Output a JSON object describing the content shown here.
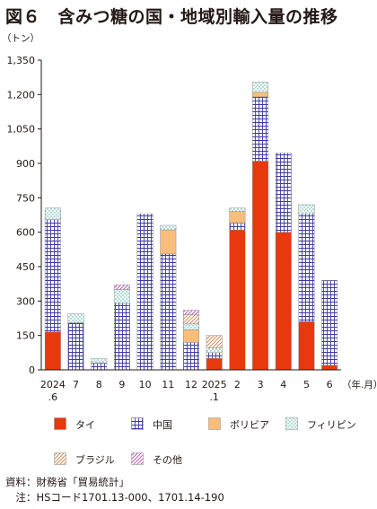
{
  "figure_title": "図６　含みつ糖の国・地域別輸入量の推移",
  "y_unit_label": "（トン）",
  "x_unit_label": "（年.月）",
  "chart_data": {
    "type": "bar",
    "stacked": true,
    "categories": [
      "2024 .6",
      "7",
      "8",
      "9",
      "10",
      "11",
      "12",
      "2025 .1",
      "2",
      "3",
      "4",
      "5",
      "6"
    ],
    "y_tick_labels": [
      "0",
      "150",
      "300",
      "450",
      "600",
      "750",
      "900",
      "1,050",
      "1,200",
      "1,350"
    ],
    "ylim": [
      0,
      1350
    ],
    "grid": false,
    "series": [
      {
        "name": "タイ",
        "color": "#e8380d",
        "pattern": "solid",
        "values": [
          165,
          0,
          0,
          0,
          0,
          0,
          0,
          50,
          610,
          910,
          600,
          210,
          20
        ]
      },
      {
        "name": "中国",
        "color": "#3d3aa6",
        "pattern": "grid",
        "values": [
          490,
          205,
          30,
          290,
          680,
          505,
          120,
          25,
          30,
          280,
          345,
          470,
          370
        ]
      },
      {
        "name": "ボリビア",
        "color": "#f9be7c",
        "pattern": "solid",
        "values": [
          0,
          0,
          0,
          0,
          0,
          105,
          55,
          0,
          50,
          20,
          0,
          0,
          0
        ]
      },
      {
        "name": "フィリピン",
        "color": "#3aa8a0",
        "pattern": "dots",
        "values": [
          50,
          40,
          20,
          60,
          0,
          20,
          25,
          20,
          15,
          45,
          0,
          40,
          0
        ]
      },
      {
        "name": "ブラジル",
        "color": "#c9773c",
        "pattern": "diagonal",
        "values": [
          0,
          0,
          0,
          0,
          0,
          0,
          40,
          55,
          0,
          0,
          0,
          0,
          0
        ]
      },
      {
        "name": "その他",
        "color": "#b53ea8",
        "pattern": "diagonal",
        "values": [
          0,
          0,
          0,
          20,
          0,
          0,
          20,
          0,
          0,
          0,
          0,
          0,
          0
        ]
      }
    ]
  },
  "notes": {
    "source": "資料：財務省「貿易統計」",
    "note": "　注：HSコード1701.13-000、1701.14-190"
  }
}
